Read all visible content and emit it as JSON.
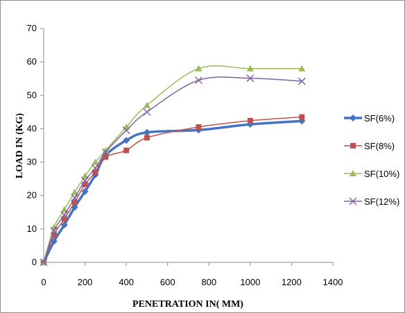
{
  "chart_data": {
    "type": "line",
    "title": "",
    "xlabel": "PENETRATION IN( MM)",
    "ylabel": "LOAD IN (KG)",
    "xlim": [
      0,
      1400
    ],
    "ylim": [
      0,
      70
    ],
    "xticks": [
      0,
      200,
      400,
      600,
      800,
      1000,
      1200,
      1400
    ],
    "yticks": [
      0,
      10,
      20,
      30,
      40,
      50,
      60,
      70
    ],
    "grid": false,
    "legend_position": "right",
    "x": [
      0,
      50,
      100,
      150,
      200,
      250,
      300,
      400,
      500,
      750,
      1000,
      1250
    ],
    "series": [
      {
        "name": "SF(6%)",
        "color": "#4472c4",
        "marker": "diamond",
        "values": [
          0,
          6.3,
          11.2,
          16.5,
          21.2,
          26.2,
          32.0,
          36.5,
          38.9,
          39.6,
          41.3,
          42.3
        ]
      },
      {
        "name": "SF(8%)",
        "color": "#c0504d",
        "marker": "square",
        "values": [
          0,
          8.2,
          13.0,
          18.0,
          23.3,
          27.0,
          31.5,
          33.5,
          37.3,
          40.5,
          42.4,
          43.5
        ]
      },
      {
        "name": "SF(10%)",
        "color": "#9bbb59",
        "marker": "triangle",
        "values": [
          0,
          10.5,
          15.8,
          21.0,
          25.8,
          30.0,
          33.5,
          40.5,
          47.0,
          58.0,
          58.0,
          58.0
        ]
      },
      {
        "name": "SF(12%)",
        "color": "#8064a2",
        "marker": "x",
        "values": [
          0,
          9.5,
          14.2,
          19.3,
          24.5,
          28.2,
          33.0,
          39.5,
          45.0,
          54.5,
          55.1,
          54.2
        ]
      }
    ]
  }
}
